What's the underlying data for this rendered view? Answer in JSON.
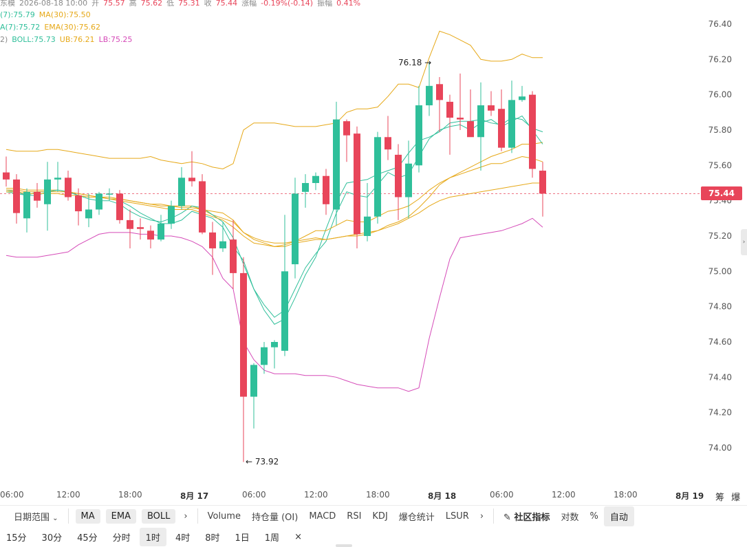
{
  "info": {
    "row1": {
      "prefix": "东模",
      "date": "2026-08-18 10:00",
      "open_label": "开",
      "open": "75.57",
      "high_label": "高",
      "high": "75.62",
      "low_label": "低",
      "low": "75.31",
      "close_label": "收",
      "close": "75.44",
      "chg_label": "涨幅",
      "chg": "-0.19%(-0.14)",
      "amp_label": "振幅",
      "amp": "0.41%"
    },
    "row2": {
      "ma7": "(7):75.79",
      "ma30": "MA(30):75.50"
    },
    "row3": {
      "ema7": "A(7):75.72",
      "ema30": "EMA(30):75.62"
    },
    "row4": {
      "boll_prefix": "2)",
      "boll": "BOLL:75.73",
      "ub": "UB:76.21",
      "lb": "LB:75.25"
    }
  },
  "annotations": {
    "high_label": "76.18 →",
    "low_label": "← 73.92"
  },
  "current_price": "75.44",
  "chart_data": {
    "type": "candlestick",
    "y_ticks": [
      "76.40",
      "76.20",
      "76.00",
      "75.80",
      "75.60",
      "75.40",
      "75.20",
      "75.00",
      "74.80",
      "74.60",
      "74.40",
      "74.20",
      "74.00"
    ],
    "ylim": [
      73.8,
      76.5
    ],
    "x_ticks": [
      {
        "label": "06:00",
        "index": 0,
        "bold": false
      },
      {
        "label": "12:00",
        "index": 6,
        "bold": false
      },
      {
        "label": "18:00",
        "index": 12,
        "bold": false
      },
      {
        "label": "8月 17",
        "index": 18,
        "bold": true
      },
      {
        "label": "06:00",
        "index": 24,
        "bold": false
      },
      {
        "label": "12:00",
        "index": 30,
        "bold": false
      },
      {
        "label": "18:00",
        "index": 36,
        "bold": false
      },
      {
        "label": "8月 18",
        "index": 42,
        "bold": true
      },
      {
        "label": "06:00",
        "index": 48,
        "bold": false
      },
      {
        "label": "12:00",
        "index": 54,
        "bold": false
      },
      {
        "label": "18:00",
        "index": 60,
        "bold": false
      },
      {
        "label": "8月 19",
        "index": 66,
        "bold": true
      }
    ],
    "candles": [
      {
        "o": 75.56,
        "h": 75.65,
        "l": 75.48,
        "c": 75.52
      },
      {
        "o": 75.52,
        "h": 75.55,
        "l": 75.27,
        "c": 75.33
      },
      {
        "o": 75.3,
        "h": 75.47,
        "l": 75.22,
        "c": 75.45
      },
      {
        "o": 75.45,
        "h": 75.5,
        "l": 75.36,
        "c": 75.4
      },
      {
        "o": 75.38,
        "h": 75.62,
        "l": 75.23,
        "c": 75.52
      },
      {
        "o": 75.52,
        "h": 75.62,
        "l": 75.45,
        "c": 75.53
      },
      {
        "o": 75.53,
        "h": 75.57,
        "l": 75.4,
        "c": 75.42
      },
      {
        "o": 75.43,
        "h": 75.47,
        "l": 75.26,
        "c": 75.34
      },
      {
        "o": 75.3,
        "h": 75.44,
        "l": 75.25,
        "c": 75.35
      },
      {
        "o": 75.35,
        "h": 75.45,
        "l": 75.32,
        "c": 75.44
      },
      {
        "o": 75.44,
        "h": 75.47,
        "l": 75.4,
        "c": 75.44
      },
      {
        "o": 75.44,
        "h": 75.46,
        "l": 75.27,
        "c": 75.29
      },
      {
        "o": 75.29,
        "h": 75.35,
        "l": 75.13,
        "c": 75.24
      },
      {
        "o": 75.25,
        "h": 75.3,
        "l": 75.18,
        "c": 75.24
      },
      {
        "o": 75.23,
        "h": 75.26,
        "l": 75.13,
        "c": 75.18
      },
      {
        "o": 75.18,
        "h": 75.32,
        "l": 75.17,
        "c": 75.27
      },
      {
        "o": 75.27,
        "h": 75.4,
        "l": 75.24,
        "c": 75.37
      },
      {
        "o": 75.37,
        "h": 75.59,
        "l": 75.35,
        "c": 75.53
      },
      {
        "o": 75.53,
        "h": 75.68,
        "l": 75.48,
        "c": 75.51
      },
      {
        "o": 75.51,
        "h": 75.55,
        "l": 75.21,
        "c": 75.22
      },
      {
        "o": 75.22,
        "h": 75.28,
        "l": 74.98,
        "c": 75.13
      },
      {
        "o": 75.13,
        "h": 75.28,
        "l": 75.11,
        "c": 75.17
      },
      {
        "o": 75.18,
        "h": 75.29,
        "l": 74.9,
        "c": 74.99
      },
      {
        "o": 74.99,
        "h": 75.08,
        "l": 73.92,
        "c": 74.29
      },
      {
        "o": 74.29,
        "h": 74.48,
        "l": 74.11,
        "c": 74.47
      },
      {
        "o": 74.47,
        "h": 74.6,
        "l": 74.42,
        "c": 74.57
      },
      {
        "o": 74.57,
        "h": 74.61,
        "l": 74.45,
        "c": 74.6
      },
      {
        "o": 74.55,
        "h": 75.32,
        "l": 74.52,
        "c": 75.0
      },
      {
        "o": 75.04,
        "h": 75.53,
        "l": 74.96,
        "c": 75.44
      },
      {
        "o": 75.45,
        "h": 75.55,
        "l": 75.36,
        "c": 75.5
      },
      {
        "o": 75.5,
        "h": 75.56,
        "l": 75.46,
        "c": 75.54
      },
      {
        "o": 75.54,
        "h": 75.58,
        "l": 75.32,
        "c": 75.38
      },
      {
        "o": 75.35,
        "h": 75.96,
        "l": 75.26,
        "c": 75.86
      },
      {
        "o": 75.85,
        "h": 75.86,
        "l": 75.62,
        "c": 75.77
      },
      {
        "o": 75.78,
        "h": 75.82,
        "l": 75.13,
        "c": 75.21
      },
      {
        "o": 75.2,
        "h": 75.5,
        "l": 75.17,
        "c": 75.31
      },
      {
        "o": 75.31,
        "h": 75.79,
        "l": 75.27,
        "c": 75.76
      },
      {
        "o": 75.76,
        "h": 75.88,
        "l": 75.63,
        "c": 75.69
      },
      {
        "o": 75.66,
        "h": 75.72,
        "l": 75.29,
        "c": 75.42
      },
      {
        "o": 75.42,
        "h": 75.74,
        "l": 75.3,
        "c": 75.61
      },
      {
        "o": 75.6,
        "h": 76.05,
        "l": 75.56,
        "c": 75.94
      },
      {
        "o": 75.94,
        "h": 76.18,
        "l": 75.88,
        "c": 76.05
      },
      {
        "o": 76.06,
        "h": 76.1,
        "l": 75.79,
        "c": 75.97
      },
      {
        "o": 75.96,
        "h": 76.0,
        "l": 75.66,
        "c": 75.87
      },
      {
        "o": 75.87,
        "h": 76.12,
        "l": 75.8,
        "c": 75.86
      },
      {
        "o": 75.85,
        "h": 76.03,
        "l": 75.77,
        "c": 75.76
      },
      {
        "o": 75.76,
        "h": 76.07,
        "l": 75.57,
        "c": 75.94
      },
      {
        "o": 75.94,
        "h": 76.02,
        "l": 75.88,
        "c": 75.91
      },
      {
        "o": 75.92,
        "h": 76.03,
        "l": 75.68,
        "c": 75.7
      },
      {
        "o": 75.7,
        "h": 76.08,
        "l": 75.67,
        "c": 75.97
      },
      {
        "o": 75.97,
        "h": 76.05,
        "l": 75.96,
        "c": 75.99
      },
      {
        "o": 76.0,
        "h": 76.02,
        "l": 75.53,
        "c": 75.58
      },
      {
        "o": 75.57,
        "h": 75.62,
        "l": 75.31,
        "c": 75.44
      }
    ],
    "series": [
      {
        "name": "UB",
        "color": "#e6a817",
        "values": [
          75.69,
          75.68,
          75.68,
          75.68,
          75.69,
          75.69,
          75.68,
          75.67,
          75.66,
          75.65,
          75.64,
          75.64,
          75.64,
          75.64,
          75.65,
          75.63,
          75.62,
          75.61,
          75.62,
          75.61,
          75.59,
          75.58,
          75.61,
          75.8,
          75.84,
          75.84,
          75.84,
          75.83,
          75.82,
          75.82,
          75.82,
          75.83,
          75.84,
          75.9,
          75.92,
          75.92,
          75.93,
          75.99,
          76.06,
          76.06,
          76.04,
          76.21,
          76.36,
          76.34,
          76.31,
          76.28,
          76.2,
          76.19,
          76.19,
          76.2,
          76.23,
          76.21,
          76.21
        ]
      },
      {
        "name": "BOLL",
        "color": "#e6a817",
        "values": [
          75.47,
          75.47,
          75.46,
          75.46,
          75.46,
          75.46,
          75.45,
          75.44,
          75.43,
          75.42,
          75.42,
          75.41,
          75.4,
          75.39,
          75.38,
          75.38,
          75.37,
          75.37,
          75.37,
          75.35,
          75.32,
          75.3,
          75.28,
          75.22,
          75.19,
          75.17,
          75.16,
          75.16,
          75.17,
          75.18,
          75.19,
          75.18,
          75.19,
          75.2,
          75.2,
          75.21,
          75.23,
          75.26,
          75.28,
          75.31,
          75.36,
          75.42,
          75.49,
          75.53,
          75.56,
          75.59,
          75.62,
          75.65,
          75.67,
          75.69,
          75.72,
          75.72,
          75.73
        ]
      },
      {
        "name": "LB",
        "color": "#d54ab8",
        "values": [
          75.09,
          75.08,
          75.08,
          75.08,
          75.09,
          75.1,
          75.11,
          75.15,
          75.18,
          75.21,
          75.22,
          75.22,
          75.22,
          75.21,
          75.21,
          75.2,
          75.2,
          75.19,
          75.17,
          75.14,
          75.08,
          74.96,
          74.9,
          74.6,
          74.5,
          74.44,
          74.42,
          74.42,
          74.42,
          74.41,
          74.41,
          74.41,
          74.4,
          74.38,
          74.36,
          74.35,
          74.34,
          74.34,
          74.34,
          74.32,
          74.34,
          74.62,
          74.85,
          75.07,
          75.19,
          75.2,
          75.21,
          75.22,
          75.23,
          75.25,
          75.27,
          75.3,
          75.25
        ]
      },
      {
        "name": "MA7",
        "color": "#2fbf9a",
        "values": [
          75.45,
          75.44,
          75.43,
          75.45,
          75.45,
          75.46,
          75.45,
          75.43,
          75.42,
          75.42,
          75.41,
          75.4,
          75.37,
          75.33,
          75.3,
          75.27,
          75.27,
          75.29,
          75.34,
          75.32,
          75.3,
          75.25,
          75.14,
          75.06,
          74.9,
          74.78,
          74.7,
          74.73,
          74.85,
          74.98,
          75.08,
          75.24,
          75.39,
          75.5,
          75.51,
          75.52,
          75.55,
          75.57,
          75.59,
          75.67,
          75.74,
          75.76,
          75.79,
          75.84,
          75.85,
          75.85,
          75.86,
          75.84,
          75.83,
          75.87,
          75.86,
          75.81,
          75.79
        ]
      },
      {
        "name": "EMA7",
        "color": "#2fbf9a",
        "values": [
          75.46,
          75.45,
          75.43,
          75.43,
          75.45,
          75.46,
          75.45,
          75.43,
          75.41,
          75.4,
          75.4,
          75.38,
          75.34,
          75.31,
          75.29,
          75.28,
          75.3,
          75.33,
          75.37,
          75.36,
          75.32,
          75.28,
          75.19,
          75.04,
          74.9,
          74.81,
          74.74,
          74.78,
          74.9,
          75.02,
          75.1,
          75.17,
          75.33,
          75.45,
          75.43,
          75.42,
          75.49,
          75.56,
          75.53,
          75.55,
          75.65,
          75.75,
          75.8,
          75.82,
          75.83,
          75.8,
          75.84,
          75.86,
          75.82,
          75.85,
          75.88,
          75.8,
          75.72
        ]
      },
      {
        "name": "MA30",
        "color": "#e6a817",
        "values": [
          75.45,
          75.45,
          75.44,
          75.44,
          75.44,
          75.44,
          75.43,
          75.43,
          75.42,
          75.42,
          75.41,
          75.4,
          75.39,
          75.38,
          75.37,
          75.36,
          75.35,
          75.35,
          75.35,
          75.33,
          75.31,
          75.29,
          75.25,
          75.2,
          75.16,
          75.15,
          75.14,
          75.14,
          75.16,
          75.17,
          75.18,
          75.18,
          75.19,
          75.2,
          75.21,
          75.22,
          75.23,
          75.25,
          75.27,
          75.3,
          75.33,
          75.37,
          75.4,
          75.42,
          75.43,
          75.44,
          75.45,
          75.46,
          75.47,
          75.48,
          75.49,
          75.5,
          75.5
        ]
      },
      {
        "name": "EMA30",
        "color": "#e6a817",
        "values": [
          75.46,
          75.46,
          75.45,
          75.45,
          75.45,
          75.45,
          75.45,
          75.44,
          75.43,
          75.42,
          75.41,
          75.41,
          75.4,
          75.39,
          75.38,
          75.37,
          75.37,
          75.36,
          75.36,
          75.35,
          75.34,
          75.33,
          75.29,
          75.22,
          75.18,
          75.16,
          75.14,
          75.15,
          75.17,
          75.2,
          75.23,
          75.23,
          75.26,
          75.29,
          75.28,
          75.28,
          75.31,
          75.34,
          75.35,
          75.37,
          75.41,
          75.46,
          75.5,
          75.53,
          75.55,
          75.57,
          75.59,
          75.61,
          75.61,
          75.63,
          75.65,
          75.64,
          75.62
        ]
      }
    ]
  },
  "toolbar": {
    "date_range": "日期范围",
    "ma": "MA",
    "ema": "EMA",
    "boll": "BOLL",
    "more": "›",
    "volume": "Volume",
    "oi": "持仓量 (OI)",
    "macd": "MACD",
    "rsi": "RSI",
    "kdj": "KDJ",
    "liq": "爆仓统计",
    "lsur": "LSUR",
    "more2": "›",
    "community": "社区指标",
    "log": "对数",
    "percent": "%",
    "auto": "自动"
  },
  "right_labels": {
    "chip": "筹",
    "liq": "爆"
  },
  "timeframes": [
    "15分",
    "30分",
    "45分",
    "分时",
    "1时",
    "4时",
    "8时",
    "1日",
    "1周"
  ],
  "timeframe_active": "1时",
  "close_symbol": "×",
  "colors": {
    "up": "#2fbf9a",
    "down": "#e8455a",
    "accent": "#e8455a"
  }
}
